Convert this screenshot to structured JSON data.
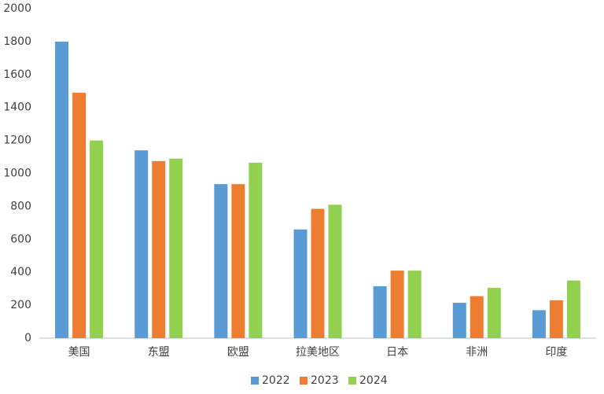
{
  "chart_data": {
    "type": "bar",
    "categories": [
      "美国",
      "东盟",
      "欧盟",
      "拉美地区",
      "日本",
      "非洲",
      "印度"
    ],
    "series": [
      {
        "name": "2022",
        "color": "#5b9bd5",
        "values": [
          1800,
          1140,
          935,
          660,
          315,
          215,
          170
        ]
      },
      {
        "name": "2023",
        "color": "#ed7d31",
        "values": [
          1490,
          1075,
          935,
          785,
          410,
          255,
          230
        ]
      },
      {
        "name": "2024",
        "color": "#92d050",
        "values": [
          1200,
          1090,
          1065,
          810,
          410,
          305,
          350
        ]
      }
    ],
    "ylim": [
      0,
      2000
    ],
    "yticks": [
      0,
      200,
      400,
      600,
      800,
      1000,
      1200,
      1400,
      1600,
      1800,
      2000
    ],
    "grid": false,
    "legend": "bottom"
  }
}
